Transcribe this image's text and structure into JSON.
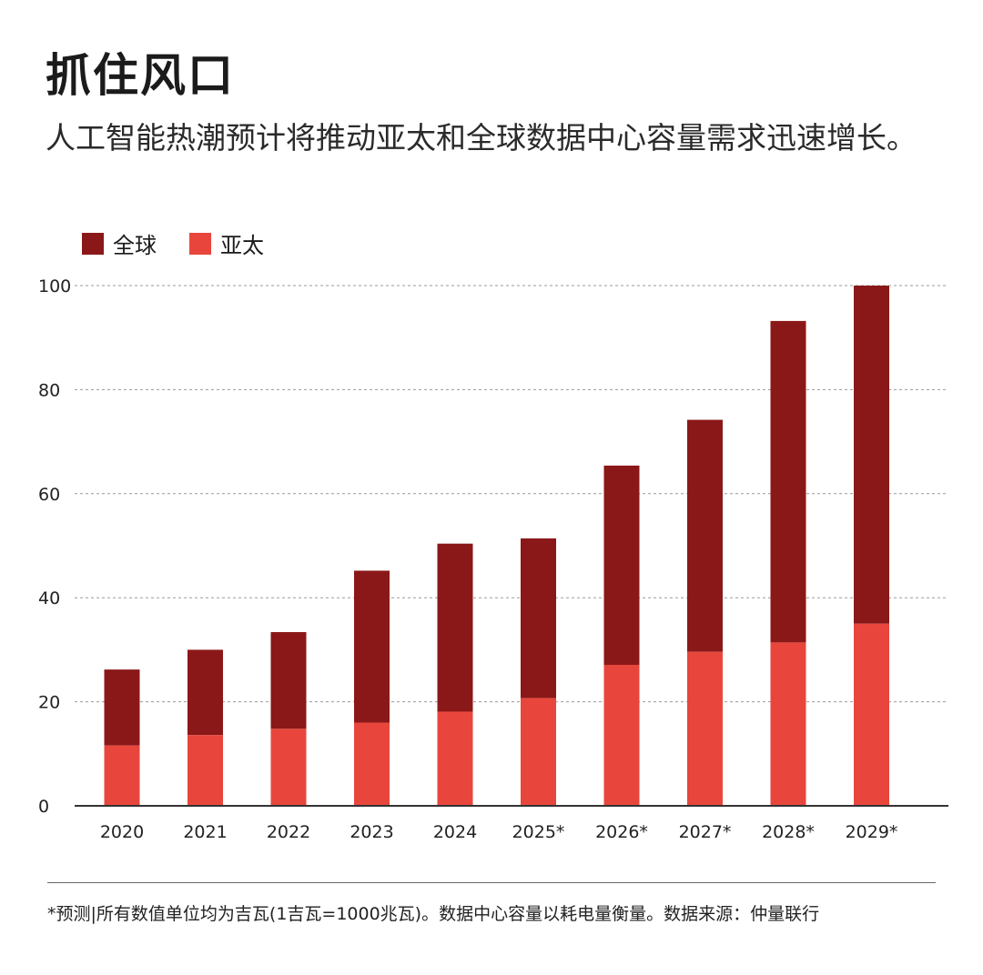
{
  "header": {
    "title": "抓住风口",
    "subtitle": "人工智能热潮预计将推动亚太和全球数据中心容量需求迅速增长。"
  },
  "footnote": "*预测|所有数值单位均为吉瓦(1吉瓦=1000兆瓦)。数据中心容量以耗电量衡量。数据来源：仲量联行",
  "colors": {
    "global": "#8b1818",
    "apac": "#e8463c",
    "grid": "#999999",
    "axis": "#333333"
  },
  "chart_data": {
    "type": "bar",
    "stacked": true,
    "title": "",
    "xlabel": "",
    "ylabel": "",
    "ylim": [
      0,
      100
    ],
    "yticks": [
      0,
      20,
      40,
      60,
      80,
      100
    ],
    "grid": true,
    "legend_position": "top-left",
    "categories": [
      "2020",
      "2021",
      "2022",
      "2023",
      "2024",
      "2025*",
      "2026*",
      "2027*",
      "2028*",
      "2029*"
    ],
    "series": [
      {
        "name": "全球",
        "totals": [
          26.2,
          30,
          33.4,
          45.2,
          50.4,
          51.4,
          65.4,
          74.2,
          93.2,
          100
        ]
      },
      {
        "name": "亚太",
        "values": [
          11.6,
          13.6,
          14.8,
          16,
          18.1,
          20.7,
          27.1,
          29.6,
          31.4,
          35
        ]
      }
    ]
  }
}
